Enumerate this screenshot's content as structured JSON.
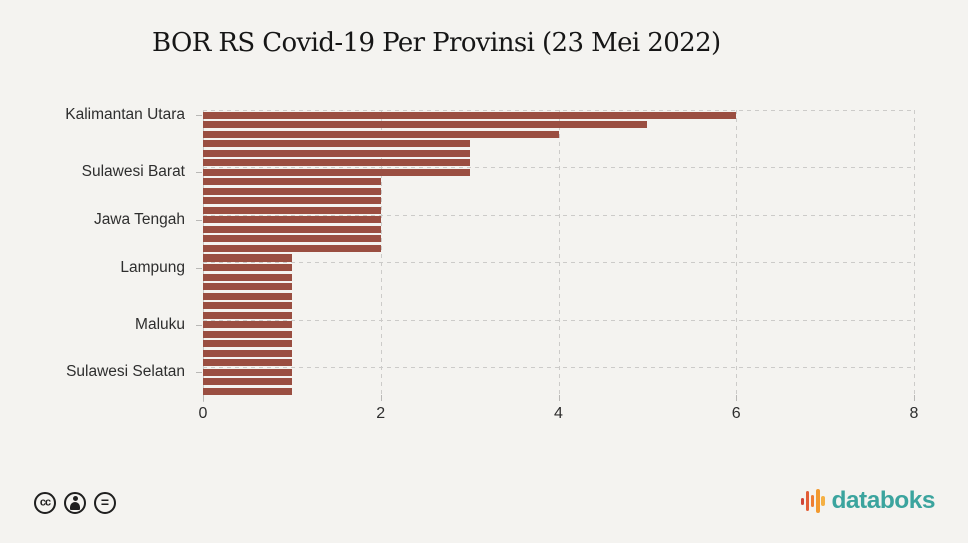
{
  "title": "BOR RS Covid-19 Per Provinsi (23 Mei 2022)",
  "chart_data": {
    "type": "bar",
    "orientation": "horizontal",
    "title": "BOR RS Covid-19 Per Provinsi (23 Mei 2022)",
    "xlabel": "",
    "ylabel": "",
    "xlim": [
      0,
      8
    ],
    "x_ticks": [
      0,
      2,
      4,
      6,
      8
    ],
    "grid": true,
    "bar_color": "#9a4e41",
    "values": [
      6,
      5,
      4,
      3,
      3,
      3,
      3,
      2,
      2,
      2,
      2,
      2,
      2,
      2,
      2,
      1,
      1,
      1,
      1,
      1,
      1,
      1,
      1,
      1,
      1,
      1,
      1,
      1,
      1,
      1
    ],
    "labeled_categories": [
      {
        "label": "Kalimantan Utara",
        "bar_index": 1,
        "value": 6
      },
      {
        "label": "Sulawesi Barat",
        "bar_index": 7,
        "value": 3
      },
      {
        "label": "Jawa Tengah",
        "bar_index": 12,
        "value": 2
      },
      {
        "label": "Lampung",
        "bar_index": 17,
        "value": 1
      },
      {
        "label": "Maluku",
        "bar_index": 23,
        "value": 1
      },
      {
        "label": "Sulawesi Selatan",
        "bar_index": 28,
        "value": 1
      }
    ]
  },
  "colors": {
    "background": "#f4f3f0",
    "bar": "#9a4e41",
    "gridline": "#cccbc9",
    "axis_text": "#2e2e2e",
    "title_text": "#161616"
  },
  "footer": {
    "license_icons": [
      "cc-icon",
      "attribution-icon",
      "no-derivatives-icon"
    ],
    "license_icon_labels": {
      "cc": "cc",
      "nd": "="
    },
    "brand": "databoks",
    "brand_color": "#3ba49e",
    "logo_bar_colors": [
      "#cf4436",
      "#e25c35",
      "#ee7d33",
      "#f2992f",
      "#f5b043"
    ],
    "logo_bar_heights": [
      7,
      20,
      12,
      24,
      10
    ]
  }
}
